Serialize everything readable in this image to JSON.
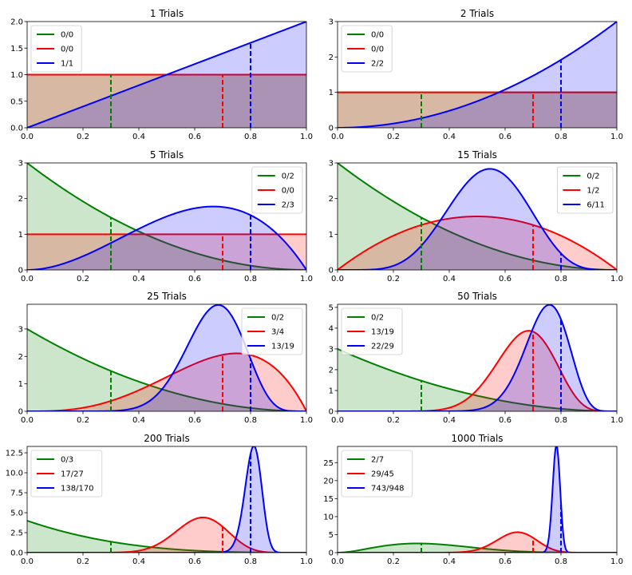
{
  "chart_data": [
    {
      "type": "area",
      "title": "1 Trials",
      "xlim": [
        0,
        1
      ],
      "ylim": [
        0,
        2
      ],
      "xticks": [
        "0.0",
        "0.2",
        "0.4",
        "0.6",
        "0.8",
        "1.0"
      ],
      "yticks": [
        "0.0",
        "0.5",
        "1.0",
        "1.5",
        "2.0"
      ],
      "ytick_values": [
        0,
        0.5,
        1.0,
        1.5,
        2.0
      ],
      "legend_position": "upper-left",
      "series": [
        {
          "name": "0/0",
          "successes": 0,
          "trials": 0,
          "true_p": 0.3,
          "color": "#008000"
        },
        {
          "name": "0/0",
          "successes": 0,
          "trials": 0,
          "true_p": 0.7,
          "color": "#ff0000"
        },
        {
          "name": "1/1",
          "successes": 1,
          "trials": 1,
          "true_p": 0.8,
          "color": "#0000ff"
        }
      ]
    },
    {
      "type": "area",
      "title": "2 Trials",
      "xlim": [
        0,
        1
      ],
      "ylim": [
        0,
        3
      ],
      "xticks": [
        "0.0",
        "0.2",
        "0.4",
        "0.6",
        "0.8",
        "1.0"
      ],
      "yticks": [
        "0",
        "1",
        "2",
        "3"
      ],
      "ytick_values": [
        0,
        1,
        2,
        3
      ],
      "legend_position": "upper-left",
      "series": [
        {
          "name": "0/0",
          "successes": 0,
          "trials": 0,
          "true_p": 0.3,
          "color": "#008000"
        },
        {
          "name": "0/0",
          "successes": 0,
          "trials": 0,
          "true_p": 0.7,
          "color": "#ff0000"
        },
        {
          "name": "2/2",
          "successes": 2,
          "trials": 2,
          "true_p": 0.8,
          "color": "#0000ff"
        }
      ]
    },
    {
      "type": "area",
      "title": "5 Trials",
      "xlim": [
        0,
        1
      ],
      "ylim": [
        0,
        3
      ],
      "xticks": [
        "0.0",
        "0.2",
        "0.4",
        "0.6",
        "0.8",
        "1.0"
      ],
      "yticks": [
        "0",
        "1",
        "2",
        "3"
      ],
      "ytick_values": [
        0,
        1,
        2,
        3
      ],
      "legend_position": "upper-right",
      "series": [
        {
          "name": "0/2",
          "successes": 0,
          "trials": 2,
          "true_p": 0.3,
          "color": "#008000"
        },
        {
          "name": "0/0",
          "successes": 0,
          "trials": 0,
          "true_p": 0.7,
          "color": "#ff0000"
        },
        {
          "name": "2/3",
          "successes": 2,
          "trials": 3,
          "true_p": 0.8,
          "color": "#0000ff"
        }
      ]
    },
    {
      "type": "area",
      "title": "15 Trials",
      "xlim": [
        0,
        1
      ],
      "ylim": [
        0,
        3
      ],
      "xticks": [
        "0.0",
        "0.2",
        "0.4",
        "0.6",
        "0.8",
        "1.0"
      ],
      "yticks": [
        "0",
        "1",
        "2",
        "3"
      ],
      "ytick_values": [
        0,
        1,
        2,
        3
      ],
      "legend_position": "upper-right",
      "series": [
        {
          "name": "0/2",
          "successes": 0,
          "trials": 2,
          "true_p": 0.3,
          "color": "#008000"
        },
        {
          "name": "1/2",
          "successes": 1,
          "trials": 2,
          "true_p": 0.7,
          "color": "#ff0000"
        },
        {
          "name": "6/11",
          "successes": 6,
          "trials": 11,
          "true_p": 0.8,
          "color": "#0000ff"
        }
      ]
    },
    {
      "type": "area",
      "title": "25 Trials",
      "xlim": [
        0,
        1
      ],
      "ylim": [
        0,
        3.9
      ],
      "xticks": [
        "0.0",
        "0.2",
        "0.4",
        "0.6",
        "0.8",
        "1.0"
      ],
      "yticks": [
        "0",
        "1",
        "2",
        "3"
      ],
      "ytick_values": [
        0,
        1,
        2,
        3
      ],
      "legend_position": "upper-right",
      "series": [
        {
          "name": "0/2",
          "successes": 0,
          "trials": 2,
          "true_p": 0.3,
          "color": "#008000"
        },
        {
          "name": "3/4",
          "successes": 3,
          "trials": 4,
          "true_p": 0.7,
          "color": "#ff0000"
        },
        {
          "name": "13/19",
          "successes": 13,
          "trials": 19,
          "true_p": 0.8,
          "color": "#0000ff"
        }
      ]
    },
    {
      "type": "area",
      "title": "50 Trials",
      "xlim": [
        0,
        1
      ],
      "ylim": [
        0,
        5.15
      ],
      "xticks": [
        "0.0",
        "0.2",
        "0.4",
        "0.6",
        "0.8",
        "1.0"
      ],
      "yticks": [
        "0",
        "1",
        "2",
        "3",
        "4",
        "5"
      ],
      "ytick_values": [
        0,
        1,
        2,
        3,
        4,
        5
      ],
      "legend_position": "upper-left",
      "series": [
        {
          "name": "0/2",
          "successes": 0,
          "trials": 2,
          "true_p": 0.3,
          "color": "#008000"
        },
        {
          "name": "13/19",
          "successes": 13,
          "trials": 19,
          "true_p": 0.7,
          "color": "#ff0000"
        },
        {
          "name": "22/29",
          "successes": 22,
          "trials": 29,
          "true_p": 0.8,
          "color": "#0000ff"
        }
      ]
    },
    {
      "type": "area",
      "title": "200 Trials",
      "xlim": [
        0,
        1
      ],
      "ylim": [
        0,
        13.3
      ],
      "xticks": [
        "0.0",
        "0.2",
        "0.4",
        "0.6",
        "0.8",
        "1.0"
      ],
      "yticks": [
        "0.0",
        "2.5",
        "5.0",
        "7.5",
        "10.0",
        "12.5"
      ],
      "ytick_values": [
        0,
        2.5,
        5.0,
        7.5,
        10.0,
        12.5
      ],
      "legend_position": "upper-left",
      "series": [
        {
          "name": "0/3",
          "successes": 0,
          "trials": 3,
          "true_p": 0.3,
          "color": "#008000"
        },
        {
          "name": "17/27",
          "successes": 17,
          "trials": 27,
          "true_p": 0.7,
          "color": "#ff0000"
        },
        {
          "name": "138/170",
          "successes": 138,
          "trials": 170,
          "true_p": 0.8,
          "color": "#0000ff"
        }
      ]
    },
    {
      "type": "area",
      "title": "1000 Trials",
      "xlim": [
        0,
        1
      ],
      "ylim": [
        0,
        29.5
      ],
      "xticks": [
        "0.0",
        "0.2",
        "0.4",
        "0.6",
        "0.8",
        "1.0"
      ],
      "yticks": [
        "0",
        "5",
        "10",
        "15",
        "20",
        "25"
      ],
      "ytick_values": [
        0,
        5,
        10,
        15,
        20,
        25
      ],
      "legend_position": "upper-left",
      "series": [
        {
          "name": "2/7",
          "successes": 2,
          "trials": 7,
          "true_p": 0.3,
          "color": "#008000"
        },
        {
          "name": "29/45",
          "successes": 29,
          "trials": 45,
          "true_p": 0.7,
          "color": "#ff0000"
        },
        {
          "name": "743/948",
          "successes": 743,
          "trials": 948,
          "true_p": 0.8,
          "color": "#0000ff"
        }
      ]
    }
  ]
}
